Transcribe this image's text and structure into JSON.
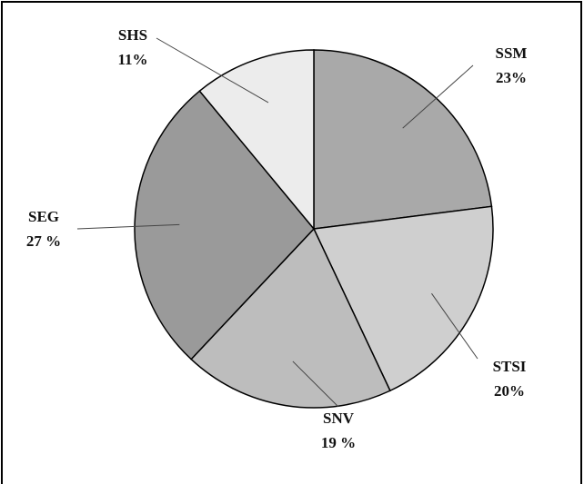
{
  "chart_data": {
    "type": "pie",
    "categories": [
      "SSM",
      "STSI",
      "SNV",
      "SEG",
      "SHS"
    ],
    "values": [
      23,
      20,
      19,
      27,
      11
    ],
    "value_labels": [
      "23%",
      "20%",
      "19 %",
      "27 %",
      "11%"
    ],
    "colors": [
      "#a9a9a9",
      "#cfcfcf",
      "#bdbdbd",
      "#9a9a9a",
      "#ececec"
    ]
  }
}
